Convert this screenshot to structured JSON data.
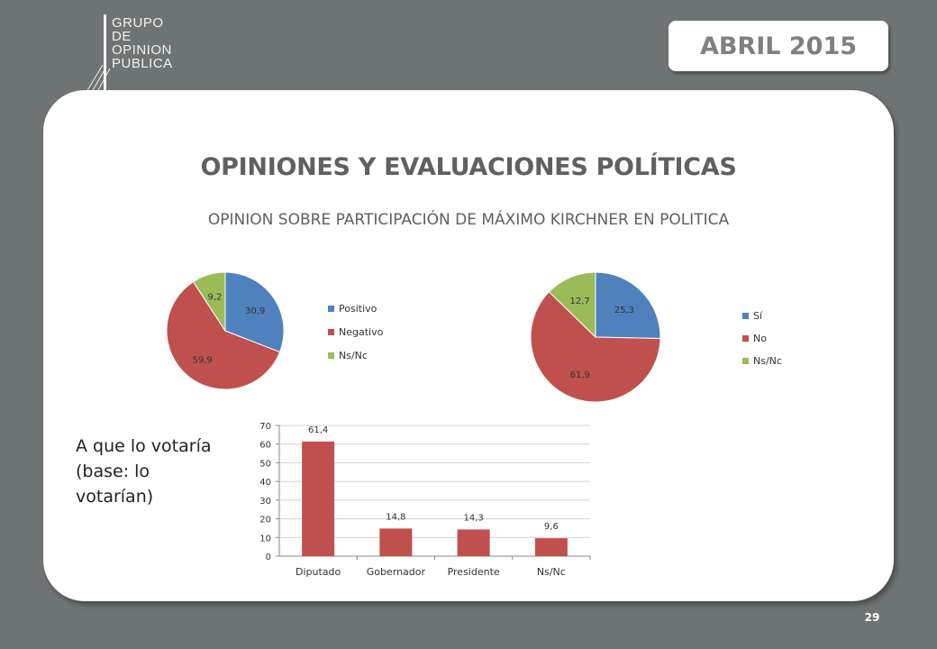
{
  "logo": {
    "lines": [
      "GRUPO",
      "DE",
      "OPINION",
      "PUBLICA"
    ]
  },
  "header": {
    "date_badge": "ABRIL 2015"
  },
  "main": {
    "title": "OPINIONES Y EVALUACIONES POLÍTICAS",
    "subtitle": "OPINION SOBRE PARTICIPACIÓN DE MÁXIMO KIRCHNER EN POLITICA",
    "side_note": "A que lo votaría (base: lo votarían)"
  },
  "footer": {
    "page_number": "29"
  },
  "chart_data": [
    {
      "type": "pie",
      "title": "",
      "slices": [
        {
          "label": "Positivo",
          "value": 30.9,
          "display": "30,9",
          "color": "#4f81bd"
        },
        {
          "label": "Negativo",
          "value": 59.9,
          "display": "59,9",
          "color": "#c0504d"
        },
        {
          "label": "Ns/Nc",
          "value": 9.2,
          "display": "9,2",
          "color": "#9bbb59"
        }
      ],
      "legend": "right"
    },
    {
      "type": "pie",
      "title": "",
      "slices": [
        {
          "label": "Sí",
          "value": 25.3,
          "display": "25,3",
          "color": "#4f81bd"
        },
        {
          "label": "No",
          "value": 61.9,
          "display": "61,9",
          "color": "#c0504d"
        },
        {
          "label": "Ns/Nc",
          "value": 12.7,
          "display": "12,7",
          "color": "#9bbb59"
        }
      ],
      "legend": "right"
    },
    {
      "type": "bar",
      "title": "",
      "categories": [
        "Diputado",
        "Gobernador",
        "Presidente",
        "Ns/Nc"
      ],
      "values": [
        61.4,
        14.8,
        14.3,
        9.6
      ],
      "value_labels": [
        "61,4",
        "14,8",
        "14,3",
        "9,6"
      ],
      "ylim": [
        0,
        70
      ],
      "yticks": [
        "0",
        "10",
        "20",
        "30",
        "40",
        "50",
        "60",
        "70"
      ],
      "color": "#c0504d",
      "grid": true,
      "legend": "none"
    }
  ]
}
